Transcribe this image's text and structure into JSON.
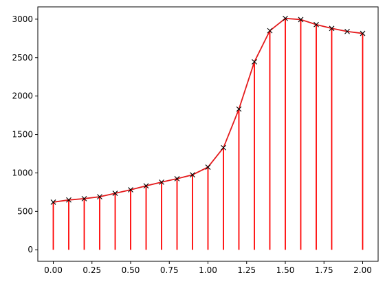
{
  "chart_data": {
    "type": "line",
    "title": "",
    "xlabel": "",
    "ylabel": "",
    "xlim": [
      -0.1,
      2.1
    ],
    "ylim": [
      -150,
      3160
    ],
    "grid": false,
    "x_ticks": [
      0.0,
      0.25,
      0.5,
      0.75,
      1.0,
      1.25,
      1.5,
      1.75,
      2.0
    ],
    "x_tick_labels": [
      "0.00",
      "0.25",
      "0.50",
      "0.75",
      "1.00",
      "1.25",
      "1.50",
      "1.75",
      "2.00"
    ],
    "y_ticks": [
      0,
      500,
      1000,
      1500,
      2000,
      2500,
      3000
    ],
    "y_tick_labels": [
      "0",
      "500",
      "1000",
      "1500",
      "2000",
      "2500",
      "3000"
    ],
    "series": [
      {
        "style": "line+markers",
        "line_color": "#e41a1c",
        "marker": "x",
        "marker_color": "#000000",
        "x": [
          0.0,
          0.1,
          0.2,
          0.3,
          0.4,
          0.5,
          0.6,
          0.7,
          0.8,
          0.9,
          1.0,
          1.1,
          1.2,
          1.3,
          1.4,
          1.5,
          1.6,
          1.7,
          1.8,
          1.9,
          2.0
        ],
        "y": [
          620,
          648,
          665,
          690,
          735,
          780,
          832,
          880,
          925,
          975,
          1075,
          1328,
          1830,
          2445,
          2850,
          3010,
          2995,
          2930,
          2880,
          2840,
          2815
        ]
      },
      {
        "style": "vlines",
        "color": "#ff0000",
        "x": [
          0.0,
          0.1,
          0.2,
          0.3,
          0.4,
          0.5,
          0.6,
          0.7,
          0.8,
          0.9,
          1.0,
          1.1,
          1.2,
          1.3,
          1.4,
          1.5,
          1.6,
          1.7,
          1.8,
          2.0
        ],
        "y": [
          620,
          648,
          665,
          690,
          735,
          780,
          832,
          880,
          925,
          975,
          1075,
          1328,
          1830,
          2445,
          2850,
          3010,
          2995,
          2930,
          2880,
          2815
        ]
      }
    ]
  }
}
